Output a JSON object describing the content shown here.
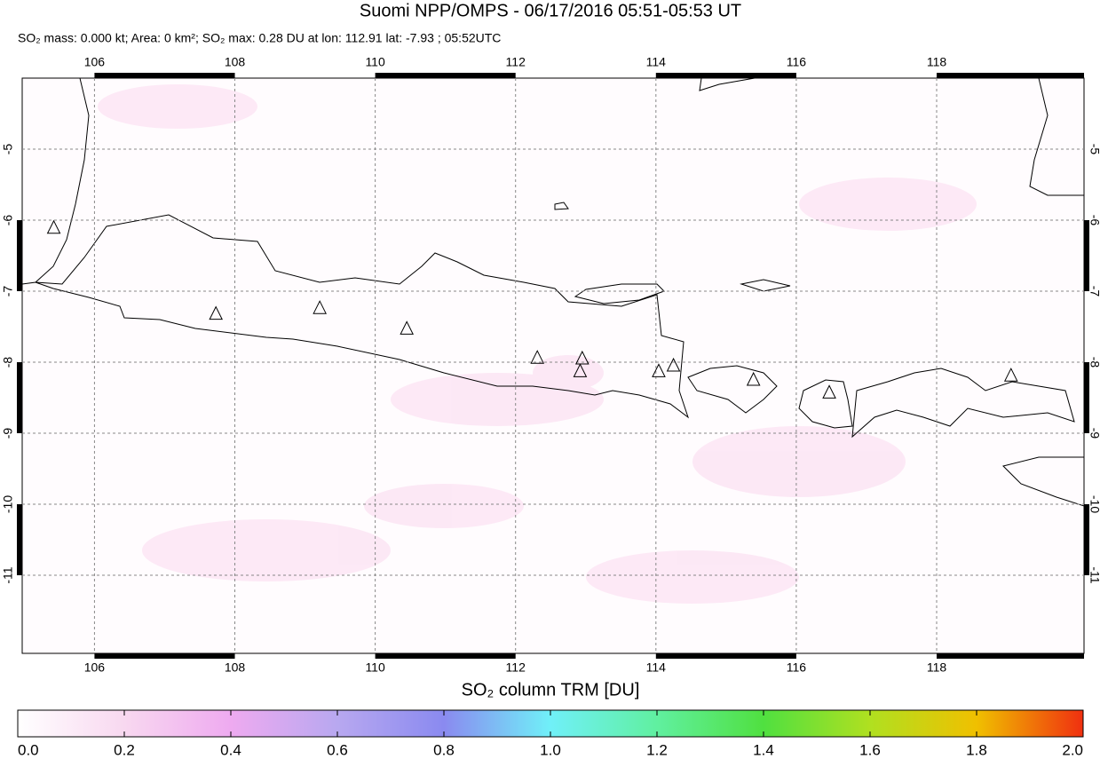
{
  "chart_data": {
    "type": "map",
    "title": "Suomi NPP/OMPS - 06/17/2016 05:51-05:53 UT",
    "subtitle": "SO₂ mass: 0.000 kt; Area: 0 km²; SO₂ max: 0.28 DU at lon: 112.91 lat: -7.93 ; 05:52UTC",
    "xlim": [
      104.97,
      120.1
    ],
    "ylim": [
      -12.1,
      -4.0
    ],
    "xticks": [
      106,
      108,
      110,
      112,
      114,
      116,
      118
    ],
    "yticks": [
      -5,
      -6,
      -7,
      -8,
      -9,
      -10,
      -11
    ],
    "grid": true,
    "volcanoes": {
      "color": "#000000",
      "lon": [
        105.42,
        107.73,
        109.21,
        110.45,
        112.31,
        112.95,
        112.92,
        114.04,
        114.25,
        115.39,
        116.47,
        119.06
      ],
      "lat": [
        -6.11,
        -7.32,
        -7.24,
        -7.53,
        -7.94,
        -7.95,
        -8.13,
        -8.13,
        -8.05,
        -8.25,
        -8.43,
        -8.19
      ]
    },
    "colorbar": {
      "label": "SO₂ column TRM [DU]",
      "lim": [
        0,
        2
      ],
      "colors": [
        "#ffffff",
        "#f8d8f0",
        "#eeaaf0",
        "#b8a8f0",
        "#8a8af0",
        "#70f0f8",
        "#60f0a0",
        "#50e040",
        "#b0e020",
        "#f0c000",
        "#f03010"
      ],
      "ticks": [
        {
          "value": 0,
          "label": "0.0"
        },
        {
          "value": 0.2,
          "label": "0.2"
        },
        {
          "value": 0.4,
          "label": "0.4"
        },
        {
          "value": 0.6,
          "label": "0.6"
        },
        {
          "value": 0.8,
          "label": "0.8"
        },
        {
          "value": 1,
          "label": "1.0"
        },
        {
          "value": 1.2,
          "label": "1.2"
        },
        {
          "value": 1.4,
          "label": "1.4"
        },
        {
          "value": 1.6,
          "label": "1.6"
        },
        {
          "value": 1.8,
          "label": "1.8"
        },
        {
          "value": 2,
          "label": "2.0"
        }
      ]
    }
  }
}
